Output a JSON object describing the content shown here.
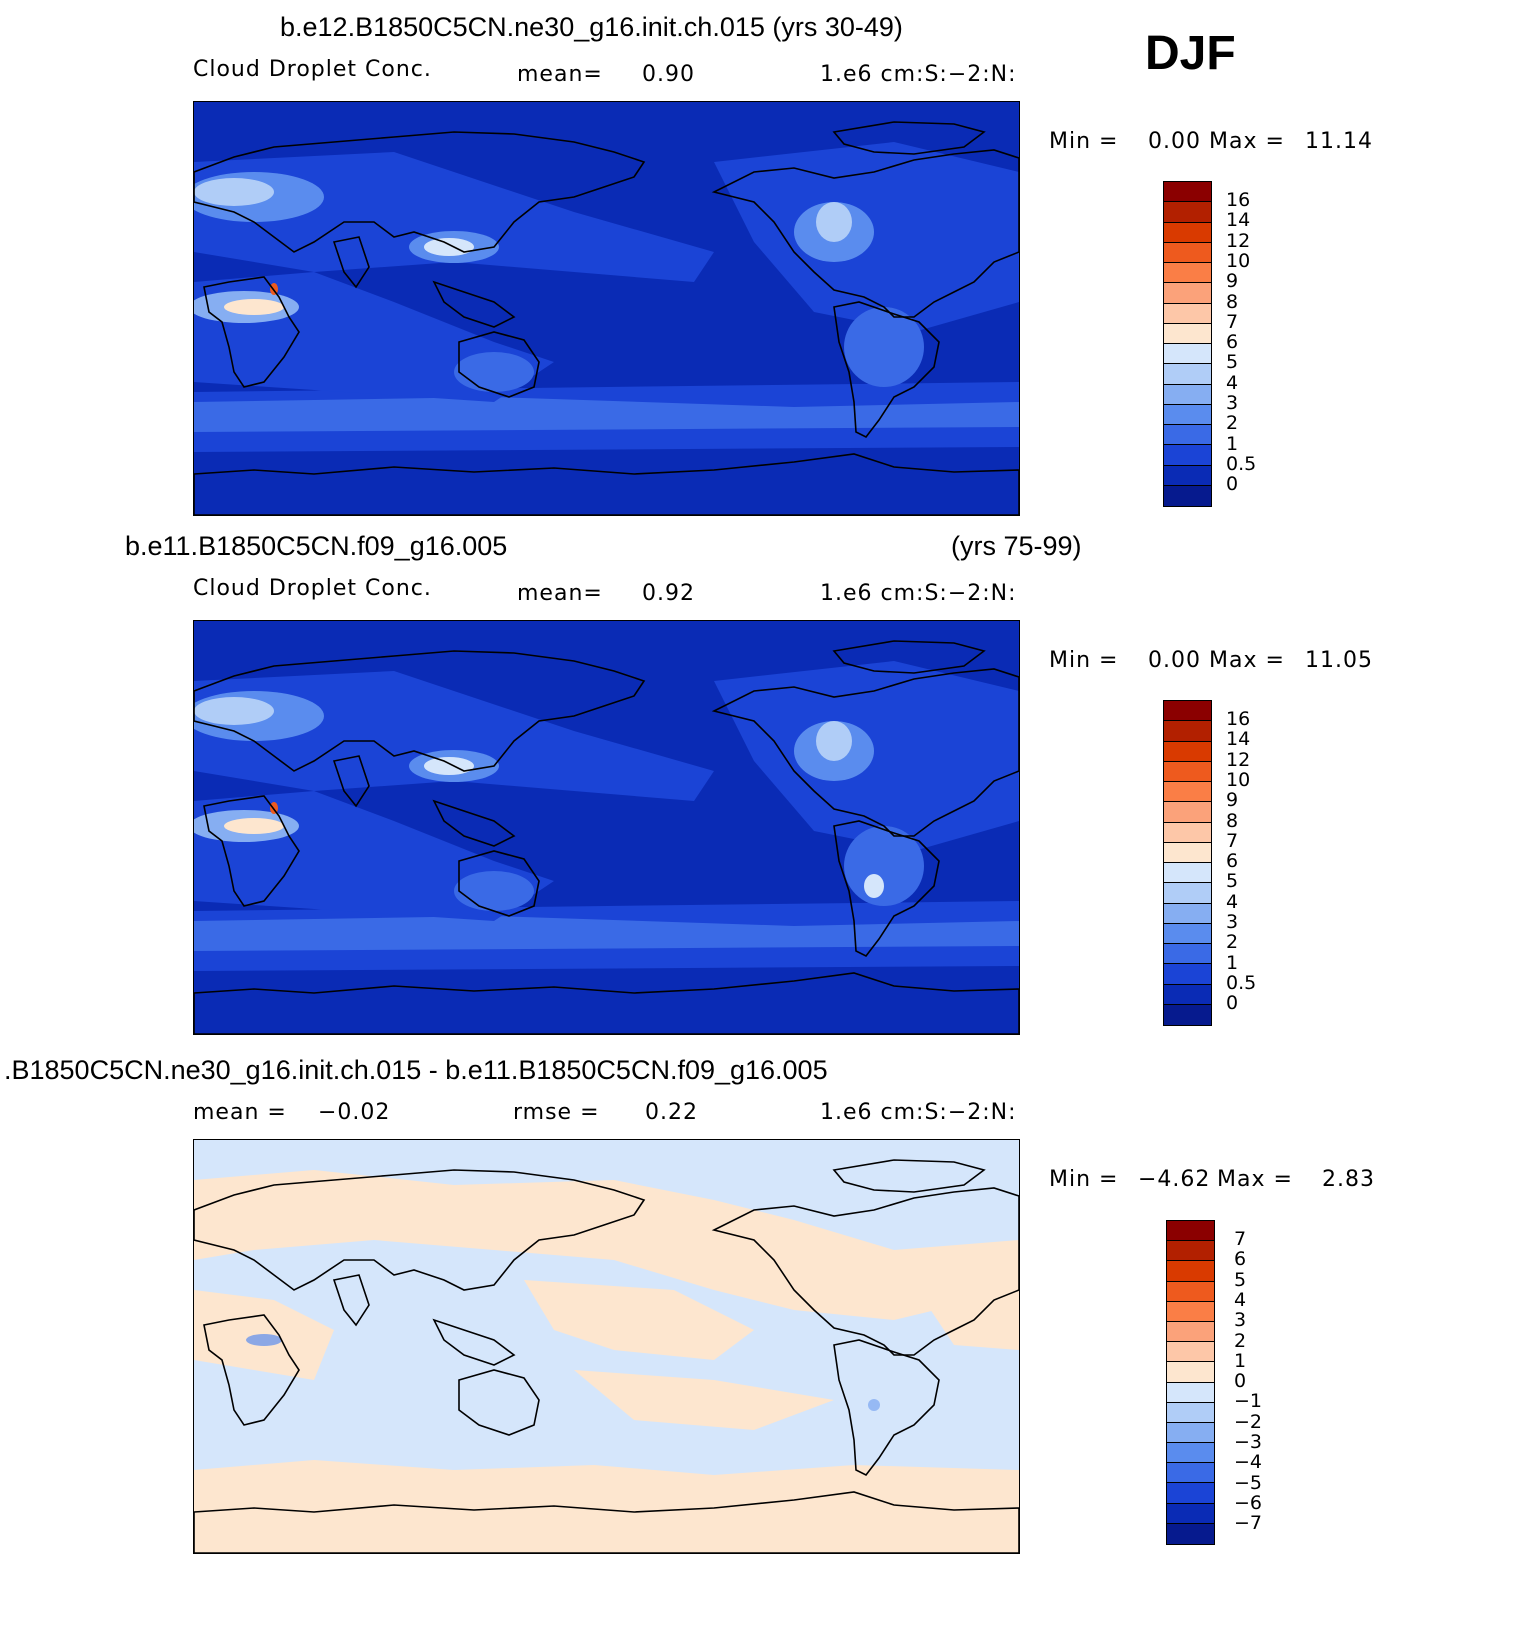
{
  "season": "DJF",
  "panels": [
    {
      "title": "b.e12.B1850C5CN.ne30_g16.init.ch.015 (yrs 30-49)",
      "left_label": "Cloud Droplet Conc.",
      "mid_label": "mean=",
      "mid_value": "0.90",
      "units": "1.e6 cm:S:−2:N:",
      "min_label": "Min =",
      "min_value": "0.00",
      "max_label": "Max =",
      "max_value": "11.14",
      "colorbar_labels": [
        "16",
        "14",
        "12",
        "10",
        "9",
        "8",
        "7",
        "6",
        "5",
        "4",
        "3",
        "2",
        "1",
        "0.5",
        "0"
      ],
      "map_style": "field_top"
    },
    {
      "title_left": "b.e11.B1850C5CN.f09_g16.005",
      "title_right": "(yrs 75-99)",
      "left_label": "Cloud Droplet Conc.",
      "mid_label": "mean=",
      "mid_value": "0.92",
      "units": "1.e6 cm:S:−2:N:",
      "min_label": "Min =",
      "min_value": "0.00",
      "max_label": "Max =",
      "max_value": "11.05",
      "colorbar_labels": [
        "16",
        "14",
        "12",
        "10",
        "9",
        "8",
        "7",
        "6",
        "5",
        "4",
        "3",
        "2",
        "1",
        "0.5",
        "0"
      ],
      "map_style": "field_mid"
    },
    {
      "title": ".B1850C5CN.ne30_g16.init.ch.015 - b.e11.B1850C5CN.f09_g16.005",
      "left_label": "mean =",
      "left_value": "−0.02",
      "mid_label": "rmse =",
      "mid_value": "0.22",
      "units": "1.e6 cm:S:−2:N:",
      "min_label": "Min =",
      "min_value": "−4.62",
      "max_label": "Max =",
      "max_value": "2.83",
      "colorbar_labels": [
        "7",
        "6",
        "5",
        "4",
        "3",
        "2",
        "1",
        "0",
        "−1",
        "−2",
        "−3",
        "−4",
        "−5",
        "−6",
        "−7"
      ],
      "map_style": "diff"
    }
  ],
  "colors": {
    "field_scale": [
      "#8b0000",
      "#b22000",
      "#d93a00",
      "#ee5a1e",
      "#fa7e46",
      "#fba27a",
      "#fdc7a8",
      "#fde6cf",
      "#d5e6fb",
      "#b0cdf7",
      "#86aef2",
      "#5a8cee",
      "#3a6ae6",
      "#1b44d6",
      "#0a2bb5",
      "#061a8e"
    ],
    "diff_scale": [
      "#8b0000",
      "#b22000",
      "#d93a00",
      "#ee5a1e",
      "#fa7e46",
      "#fba27a",
      "#fdc7a8",
      "#fde6cf",
      "#d5e6fb",
      "#b0cdf7",
      "#86aef2",
      "#5a8cee",
      "#3a6ae6",
      "#1b44d6",
      "#0a2bb5",
      "#061a8e"
    ]
  }
}
